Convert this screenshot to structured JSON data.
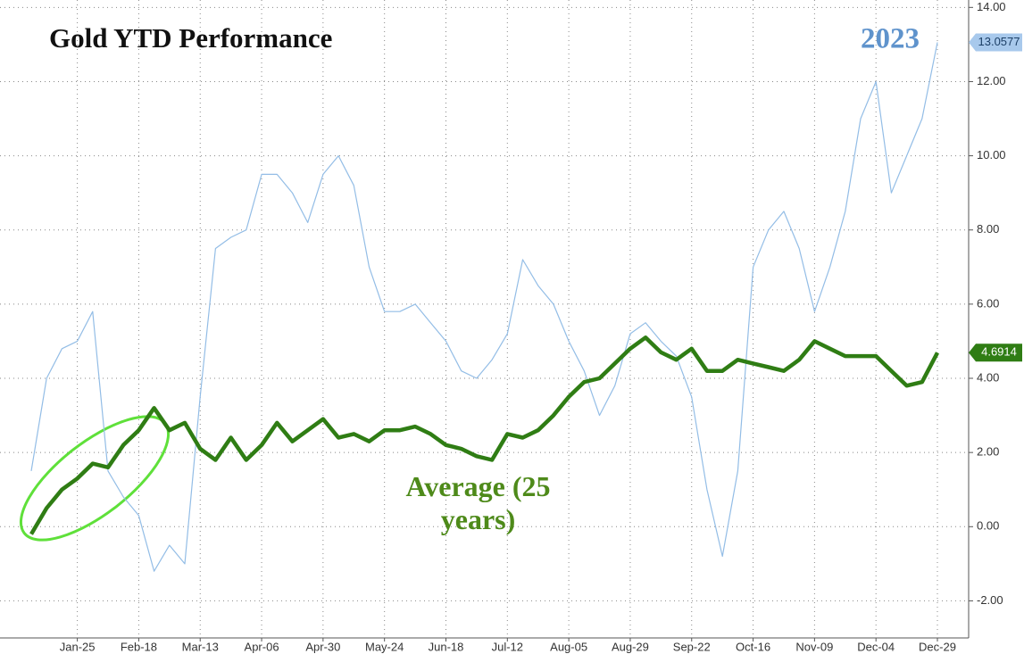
{
  "chart_data": {
    "type": "line",
    "title": "Gold YTD Performance",
    "categories": [
      null,
      null,
      null,
      "Jan-25",
      null,
      null,
      null,
      "Feb-18",
      null,
      null,
      null,
      "Mar-13",
      null,
      null,
      null,
      "Apr-06",
      null,
      null,
      null,
      "Apr-30",
      null,
      null,
      null,
      "May-24",
      null,
      null,
      null,
      "Jun-18",
      null,
      null,
      null,
      "Jul-12",
      null,
      null,
      null,
      "Aug-05",
      null,
      null,
      null,
      "Aug-29",
      null,
      null,
      null,
      "Sep-22",
      null,
      null,
      null,
      "Oct-16",
      null,
      null,
      null,
      "Nov-09",
      null,
      null,
      null,
      "Dec-04",
      null,
      null,
      null,
      "Dec-29"
    ],
    "series": [
      {
        "name": "2023",
        "color": "#93bde6",
        "values": [
          1.5,
          4.0,
          4.8,
          5.0,
          5.8,
          1.5,
          0.8,
          0.3,
          -1.2,
          -0.5,
          -1.0,
          3.5,
          7.5,
          7.8,
          8.0,
          9.5,
          9.5,
          9.0,
          8.2,
          9.5,
          10.0,
          9.2,
          7.0,
          5.8,
          5.8,
          6.0,
          5.5,
          5.0,
          4.2,
          4.0,
          4.5,
          5.2,
          7.2,
          6.5,
          6.0,
          5.0,
          4.2,
          3.0,
          3.8,
          5.2,
          5.5,
          5.0,
          4.6,
          3.5,
          1.0,
          -0.8,
          1.5,
          7.0,
          8.0,
          8.5,
          7.5,
          5.8,
          7.0,
          8.5,
          11.0,
          12.0,
          9.0,
          10.0,
          11.0,
          13.0577
        ]
      },
      {
        "name": "Average (25 years)",
        "color": "#2f7d14",
        "values": [
          -0.2,
          0.5,
          1.0,
          1.3,
          1.7,
          1.6,
          2.2,
          2.6,
          3.2,
          2.6,
          2.8,
          2.1,
          1.8,
          2.4,
          1.8,
          2.2,
          2.8,
          2.3,
          2.6,
          2.9,
          2.4,
          2.5,
          2.3,
          2.6,
          2.6,
          2.7,
          2.5,
          2.2,
          2.1,
          1.9,
          1.8,
          2.5,
          2.4,
          2.6,
          3.0,
          3.5,
          3.9,
          4.0,
          4.4,
          4.8,
          5.1,
          4.7,
          4.5,
          4.8,
          4.2,
          4.2,
          4.5,
          4.4,
          4.3,
          4.2,
          4.5,
          5.0,
          4.8,
          4.6,
          4.6,
          4.6,
          4.2,
          3.8,
          3.9,
          4.6914
        ]
      }
    ],
    "ylim": [
      -3,
      14.2
    ],
    "yticks": [
      {
        "value": -2,
        "label": "-2.00"
      },
      {
        "value": 0,
        "label": "0.00"
      },
      {
        "value": 2,
        "label": "2.00"
      },
      {
        "value": 4,
        "label": "4.00"
      },
      {
        "value": 6,
        "label": "6.00"
      },
      {
        "value": 8,
        "label": "8.00"
      },
      {
        "value": 10,
        "label": "10.00"
      },
      {
        "value": 12,
        "label": "12.00"
      },
      {
        "value": 14,
        "label": "14.00"
      }
    ],
    "grid": true
  }
}
